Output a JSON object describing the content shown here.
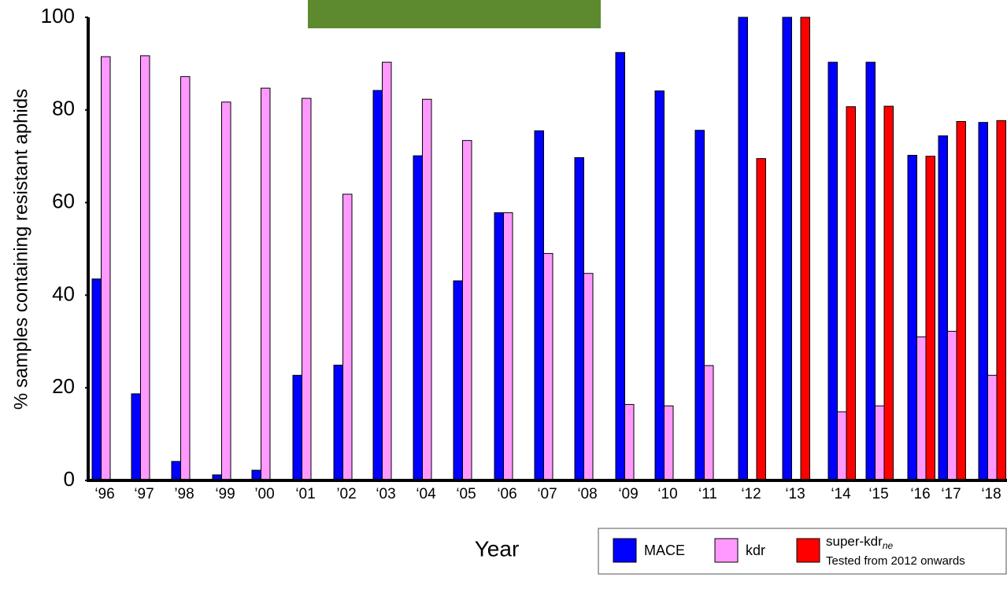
{
  "chart_data": {
    "type": "bar",
    "y_label": "% samples containing resistant aphids",
    "x_label": "Year",
    "categories": [
      "‘96",
      "‘97",
      "’98",
      "‘99",
      "’00",
      "‘01",
      "’02",
      "‘03",
      "‘04",
      "‘05",
      "‘06",
      "‘07",
      "‘08",
      "‘09",
      "‘10",
      "‘11",
      "‘12",
      "‘13",
      "‘14",
      "‘15",
      "‘16",
      "‘17",
      "‘18"
    ],
    "series": [
      {
        "name": "MACE",
        "color": "#0000ff",
        "values": [
          43.5,
          18.7,
          4.1,
          1.2,
          2.2,
          22.7,
          24.9,
          84.2,
          70.1,
          43.1,
          57.8,
          75.5,
          69.7,
          92.4,
          84.1,
          75.6,
          100,
          100,
          90.3,
          90.3,
          70.2,
          74.4,
          77.3
        ]
      },
      {
        "name": "kdr",
        "color": "#ff99ff",
        "values": [
          91.5,
          91.7,
          87.2,
          81.7,
          84.7,
          82.5,
          61.8,
          90.3,
          82.3,
          73.4,
          57.8,
          49.0,
          44.7,
          16.4,
          16.1,
          24.8,
          null,
          null,
          14.8,
          16.1,
          31.0,
          32.2,
          22.7
        ]
      },
      {
        "name": "super-kdr",
        "name_subscript": "ne",
        "note": "Tested from 2012 onwards",
        "color": "#ff0000",
        "values": [
          null,
          null,
          null,
          null,
          null,
          null,
          null,
          null,
          null,
          null,
          null,
          null,
          null,
          null,
          null,
          null,
          69.5,
          100,
          80.7,
          80.8,
          70.0,
          77.5,
          77.7
        ]
      }
    ],
    "ylim": [
      0,
      100
    ],
    "yticks": [
      0,
      20,
      40,
      60,
      80,
      100
    ],
    "grid": false,
    "legend": "bottom-right"
  }
}
